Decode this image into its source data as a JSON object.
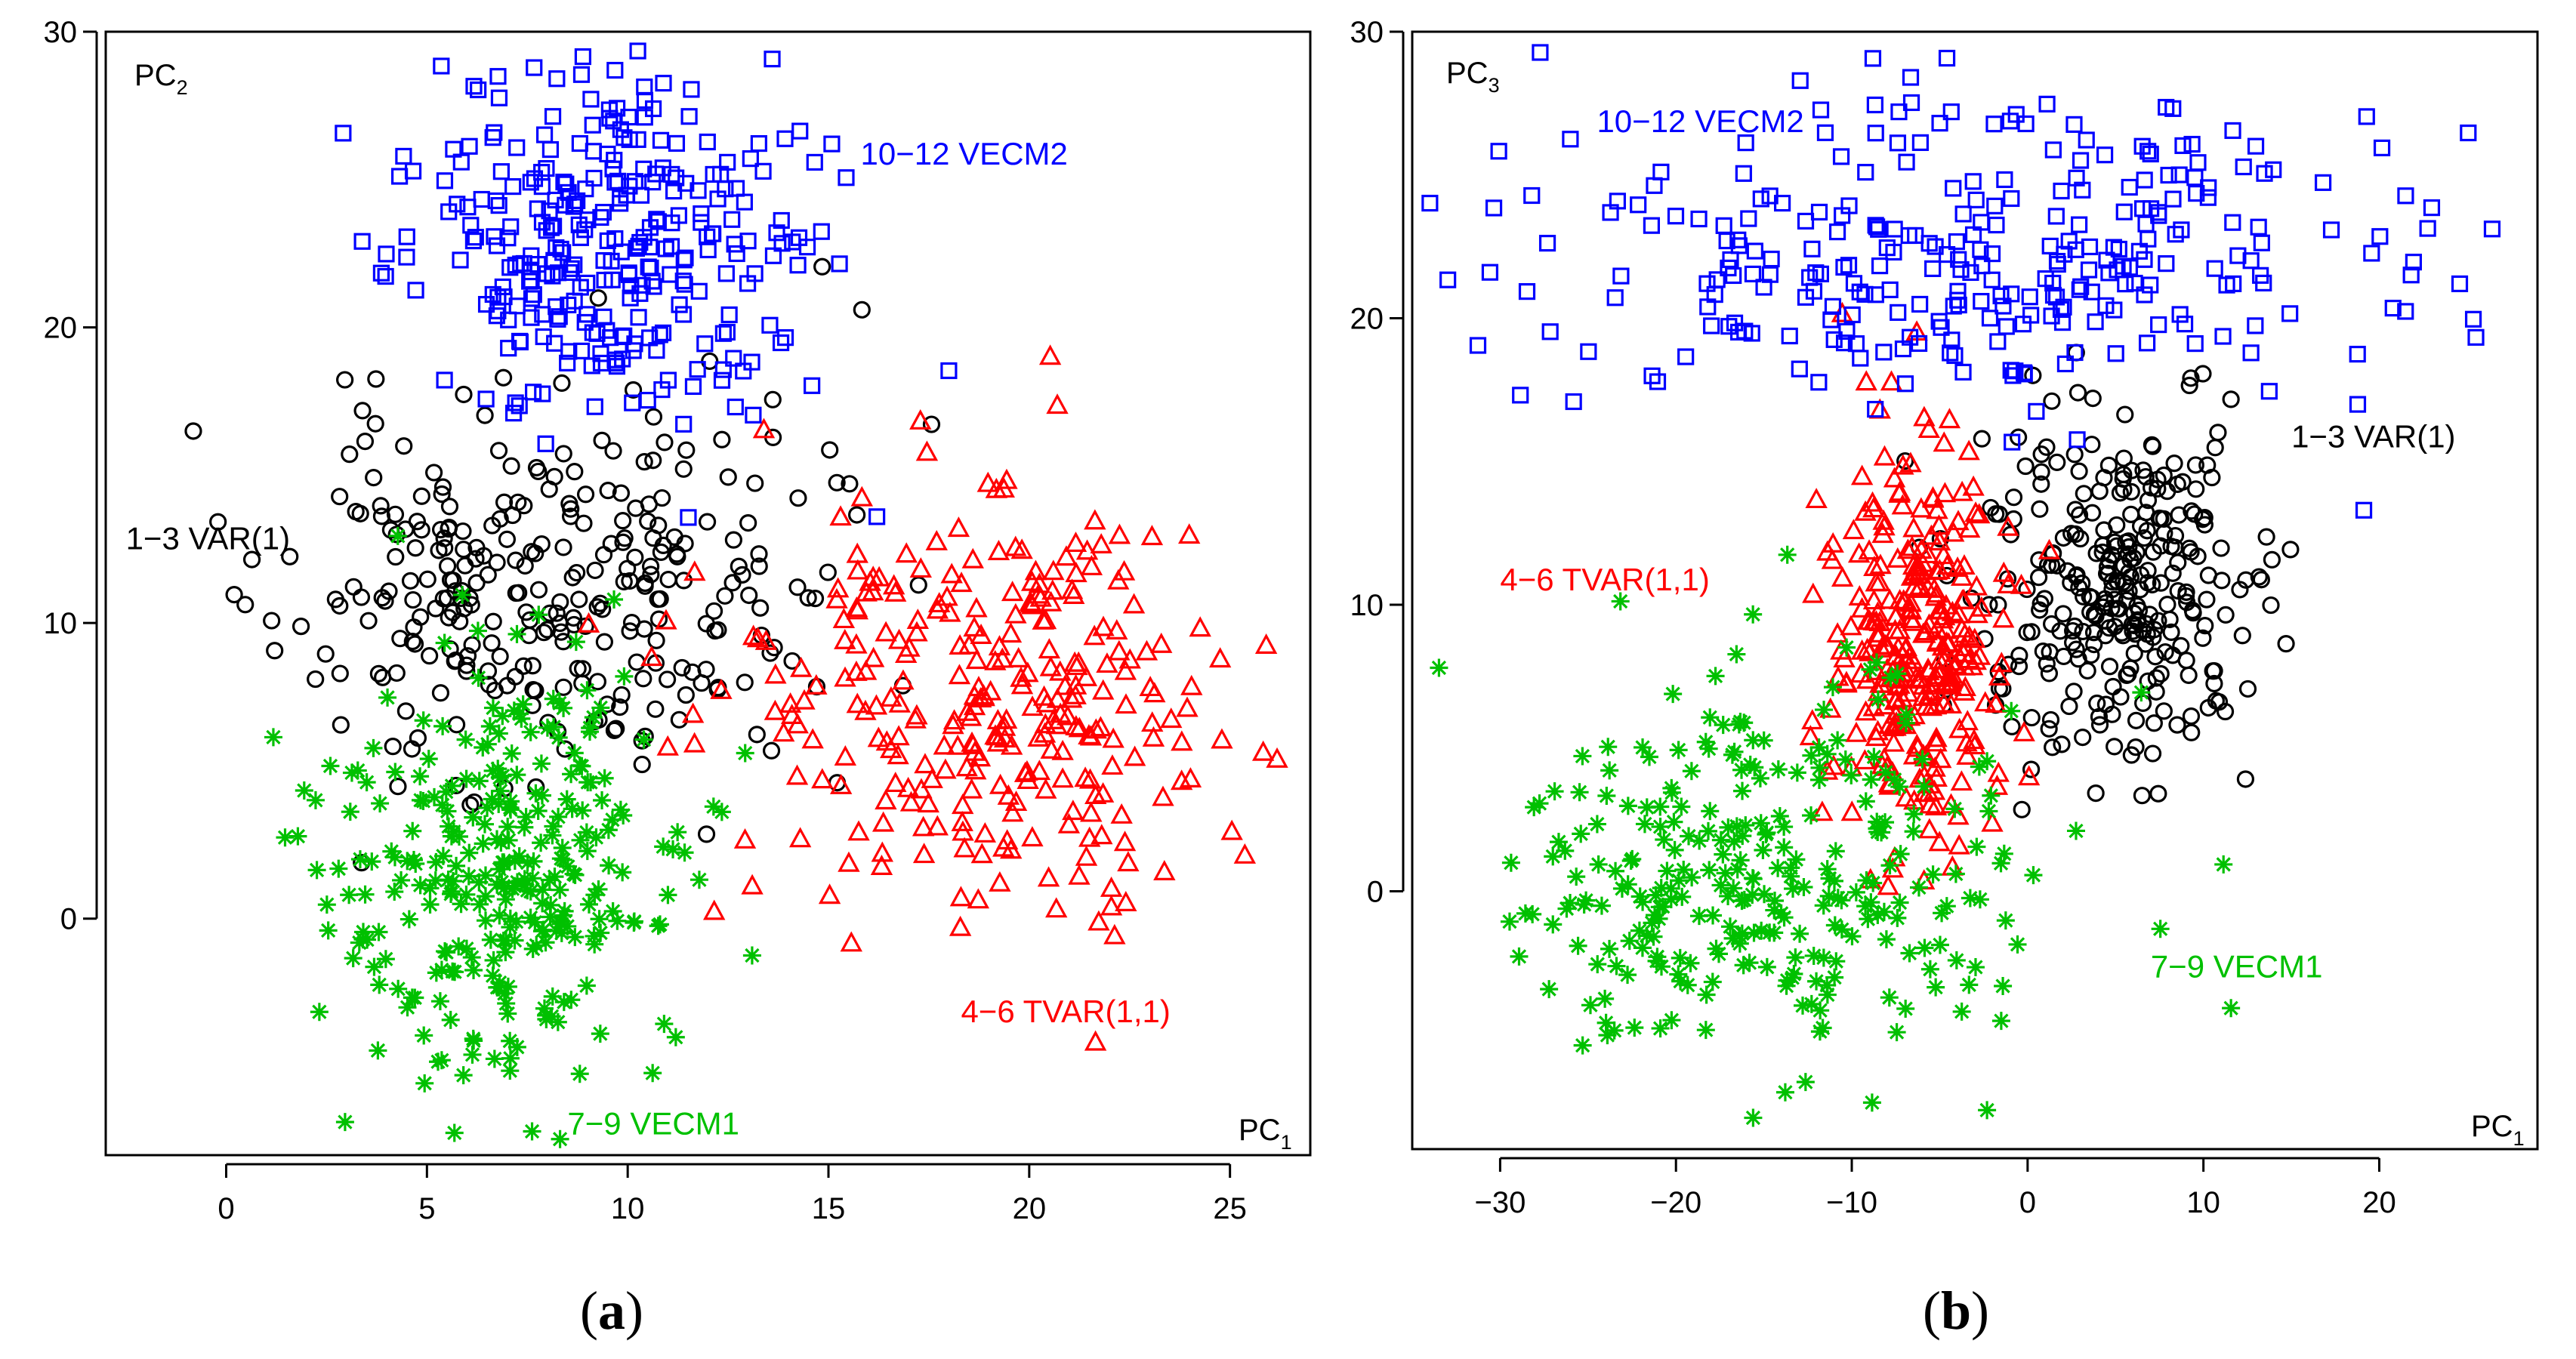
{
  "chart_data": [
    {
      "type": "scatter",
      "panel_label": "(a)",
      "panel_label_parts": [
        "(",
        "a",
        ")"
      ],
      "x_axis_label": {
        "base": "PC",
        "sub": "1"
      },
      "y_axis_label": {
        "base": "PC",
        "sub": "2"
      },
      "xlim": [
        -3,
        27
      ],
      "ylim": [
        -8,
        30
      ],
      "xticks": [
        0,
        5,
        10,
        15,
        20,
        25
      ],
      "yticks": [
        0,
        10,
        20,
        30
      ],
      "grid": false,
      "series": [
        {
          "name": "1-3 VAR(1)",
          "label": "1−3  VAR(1)",
          "color": "#000000",
          "marker": "circle",
          "n": 300,
          "mean": [
            8,
            11
          ],
          "sd": [
            3.3,
            3.2
          ],
          "seed": 11
        },
        {
          "name": "4-6 TVAR(1,1)",
          "label": "4−6  TVAR(1,1)",
          "color": "#ff0000",
          "marker": "triangle",
          "n": 300,
          "mean": [
            19,
            7.5
          ],
          "sd": [
            3.2,
            3.5
          ],
          "seed": 22
        },
        {
          "name": "7-9 VECM1",
          "label": "7−9  VECM1",
          "color": "#00c000",
          "marker": "star",
          "n": 300,
          "mean": [
            6.8,
            1.5
          ],
          "sd": [
            2.2,
            3.6
          ],
          "seed": 33
        },
        {
          "name": "10-12 VECM2",
          "label": "10−12  VECM2",
          "color": "#0000ff",
          "marker": "square",
          "n": 300,
          "mean": [
            9.5,
            22.5
          ],
          "sd": [
            2.6,
            2.8
          ],
          "seed": 44
        }
      ],
      "annotations": [
        {
          "series": 3,
          "x": 15.8,
          "y": 25.5
        },
        {
          "series": 0,
          "x": -2.5,
          "y": 12.5
        },
        {
          "series": 1,
          "x": 18.3,
          "y": -3.5
        },
        {
          "series": 2,
          "x": 8.5,
          "y": -7.3
        }
      ]
    },
    {
      "type": "scatter",
      "panel_label": "(b)",
      "panel_label_parts": [
        "(",
        "b",
        ")"
      ],
      "x_axis_label": {
        "base": "PC",
        "sub": "1"
      },
      "y_axis_label": {
        "base": "PC",
        "sub": "3"
      },
      "xlim": [
        -35,
        29
      ],
      "ylim": [
        -9,
        30
      ],
      "xticks": [
        -30,
        -20,
        -10,
        0,
        10,
        20
      ],
      "yticks": [
        0,
        10,
        20,
        30
      ],
      "grid": false,
      "series": [
        {
          "name": "1-3 VAR(1)",
          "label": "1−3  VAR(1)",
          "color": "#000000",
          "marker": "circle",
          "n": 300,
          "mean": [
            5,
            10.5
          ],
          "sd": [
            4.0,
            3.2
          ],
          "seed": 55
        },
        {
          "name": "4-6 TVAR(1,1)",
          "label": "4−6  TVAR(1,1)",
          "color": "#ff0000",
          "marker": "triangle",
          "n": 300,
          "mean": [
            -6,
            8.5
          ],
          "sd": [
            2.3,
            3.2
          ],
          "seed": 66
        },
        {
          "name": "7-9 VECM1",
          "label": "7−9  VECM1",
          "color": "#00c000",
          "marker": "star",
          "n": 300,
          "mean": [
            -15,
            0.5
          ],
          "sd": [
            7.5,
            3.8
          ],
          "seed": 77
        },
        {
          "name": "10-12 VECM2",
          "label": "10−12  VECM2",
          "color": "#0000ff",
          "marker": "square",
          "n": 300,
          "mean": [
            -2,
            22.5
          ],
          "sd": [
            12.5,
            3.0
          ],
          "seed": 88
        }
      ],
      "annotations": [
        {
          "series": 3,
          "x": -24.5,
          "y": 26.5
        },
        {
          "series": 0,
          "x": 15,
          "y": 15.5
        },
        {
          "series": 1,
          "x": -30,
          "y": 10.5
        },
        {
          "series": 2,
          "x": 7,
          "y": -3
        }
      ]
    }
  ]
}
